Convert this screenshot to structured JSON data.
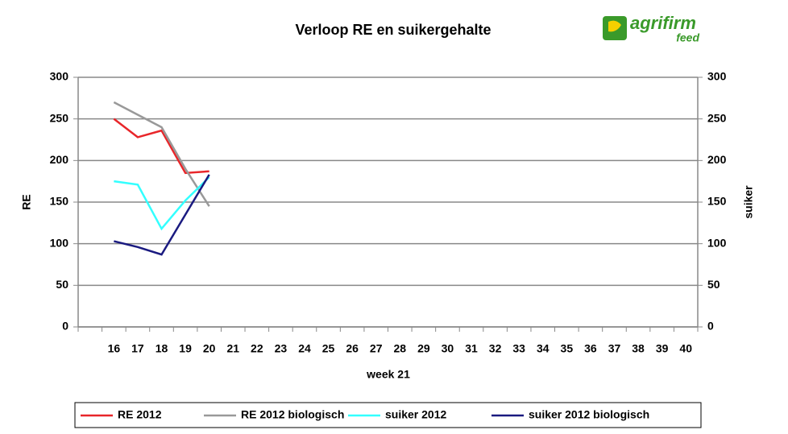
{
  "chart_data": {
    "type": "line",
    "title": "Verloop RE en suikergehalte",
    "logo": {
      "name": "agrifirm",
      "sub": "feed"
    },
    "x_label": "week 21",
    "y_label": "RE",
    "y2_label": "suiker",
    "categories": [
      null,
      "16",
      "17",
      "18",
      "19",
      "20",
      "21",
      "22",
      "23",
      "24",
      "25",
      "26",
      "27",
      "28",
      "29",
      "30",
      "31",
      "32",
      "33",
      "34",
      "35",
      "36",
      "37",
      "38",
      "39",
      "40"
    ],
    "ylim": [
      0,
      300
    ],
    "yticks": [
      0,
      50,
      100,
      150,
      200,
      250,
      300
    ],
    "y2lim": [
      0,
      300
    ],
    "y2ticks": [
      0,
      50,
      100,
      150,
      200,
      250,
      300
    ],
    "grid": true,
    "legend": "bottom",
    "series": [
      {
        "name": "RE 2012",
        "color": "#e8262a",
        "values": [
          null,
          250,
          228,
          236,
          185,
          187,
          null,
          null,
          null,
          null,
          null,
          null,
          null,
          null,
          null,
          null,
          null,
          null,
          null,
          null,
          null,
          null,
          null,
          null,
          null,
          null
        ]
      },
      {
        "name": "RE 2012 biologisch",
        "color": "#999999",
        "values": [
          null,
          270,
          255,
          240,
          190,
          145,
          null,
          null,
          null,
          null,
          null,
          null,
          null,
          null,
          null,
          null,
          null,
          null,
          null,
          null,
          null,
          null,
          null,
          null,
          null,
          null
        ]
      },
      {
        "name": "suiker 2012",
        "color": "#33ffff",
        "axis": "y2",
        "values": [
          null,
          175,
          171,
          118,
          152,
          180,
          null,
          null,
          null,
          null,
          null,
          null,
          null,
          null,
          null,
          null,
          null,
          null,
          null,
          null,
          null,
          null,
          null,
          null,
          null,
          null
        ]
      },
      {
        "name": "suiker 2012 biologisch",
        "color": "#1a1a80",
        "axis": "y2",
        "values": [
          null,
          103,
          96,
          87,
          135,
          183,
          null,
          null,
          null,
          null,
          null,
          null,
          null,
          null,
          null,
          null,
          null,
          null,
          null,
          null,
          null,
          null,
          null,
          null,
          null,
          null
        ]
      }
    ]
  }
}
